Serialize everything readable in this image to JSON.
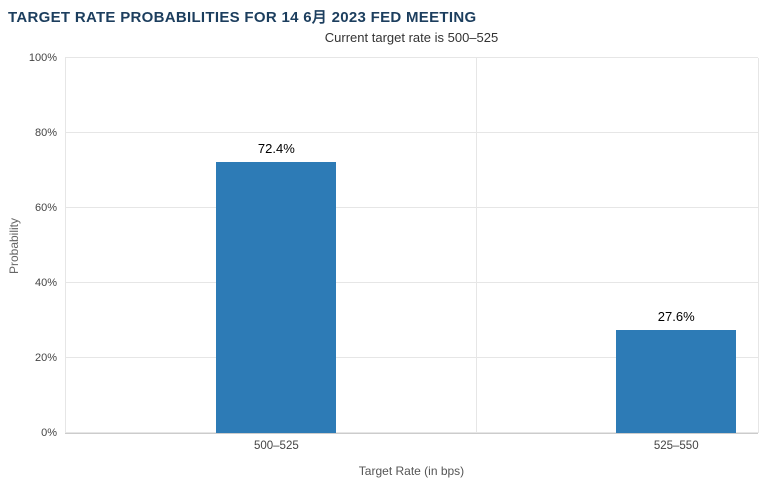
{
  "chart_data": {
    "type": "bar",
    "title": "TARGET RATE PROBABILITIES FOR 14 6月 2023 FED MEETING",
    "subtitle": "Current target rate is 500–525",
    "categories": [
      "500–525",
      "525–550"
    ],
    "values": [
      72.4,
      27.6
    ],
    "value_labels": [
      "72.4%",
      "27.6%"
    ],
    "xlabel": "Target Rate (in bps)",
    "ylabel": "Probability",
    "ylim": [
      0,
      100
    ],
    "ytick_step": 20,
    "ytick_labels": [
      "0%",
      "20%",
      "40%",
      "60%",
      "80%",
      "100%"
    ],
    "grid": true,
    "legend": "none",
    "bar_color": "#2d7bb6"
  }
}
